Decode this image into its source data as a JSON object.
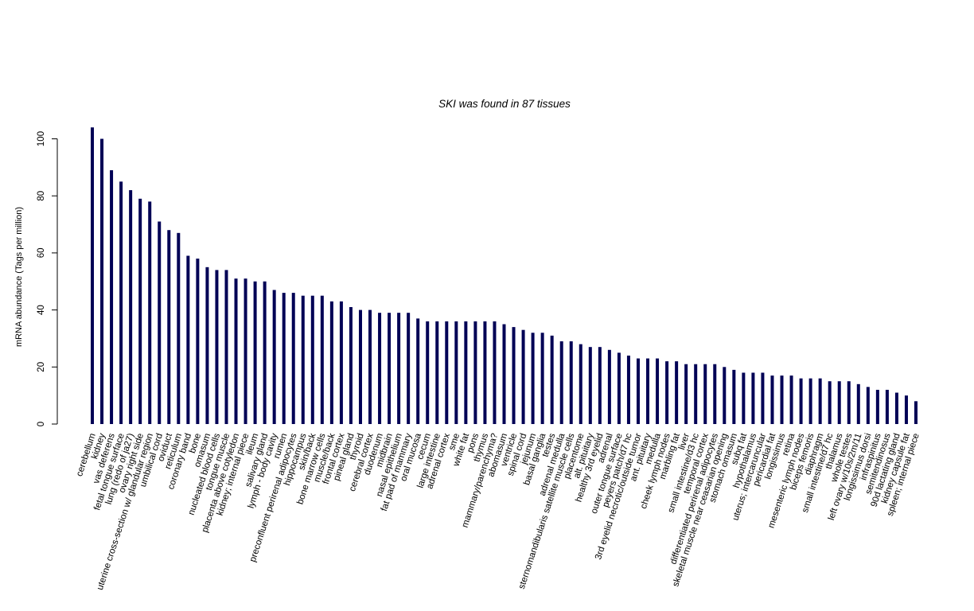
{
  "chart_data": {
    "type": "bar",
    "title": "SKI  was found in  87  tissues",
    "ylabel": "mRNA abundance (Tags per million)",
    "ylim": [
      0,
      104
    ],
    "yticks": [
      0,
      20,
      40,
      60,
      80,
      100
    ],
    "bar_color": "#000055",
    "categories": [
      "cerebellum",
      "kidney",
      "vas deferens",
      "fetal tongue surface",
      "lung (redo of ja27)",
      "ovary right side",
      "uterine cross-section w/ glandular region",
      "umbilical cord",
      "oviduct",
      "reticulum",
      "coronary band",
      "bone",
      "omasum",
      "nucleated blood cells",
      "tongue muscle",
      "placenta above cotyledon",
      "kidney; internal piece",
      "ileum",
      "salivary gland",
      "lymph - body cavity",
      "rumen",
      "preconfluent perirenal adipocytes",
      "hippocampus",
      "skin/back",
      "bone marrow cells",
      "muscle/back",
      "frontal cortex",
      "pineal gland",
      "thyroid",
      "cerebral cortex",
      "duodenum",
      "midbrain",
      "nasal epithelium",
      "fat pad of mammary",
      "oral mucosa",
      "cecum",
      "large intestine",
      "adrenal cortex",
      "sme",
      "white fat",
      "pons",
      "thymus",
      "mammary/parenchyma?",
      "abomasum",
      "ventricle",
      "spinal cord",
      "jejunum",
      "basal ganglia",
      "testes",
      "adrenal medulla",
      "sternomandibularis satellite muscle cells",
      "placentome",
      "alt. pituitary",
      "healthy 3rd eyelid",
      "adrenal",
      "outer tongue surface",
      "peyers patch/d7 hc",
      "3rd eyelid necrotic/outside tumor",
      "ant. pituitary",
      "medulla",
      "cheek lymph nodes",
      "marbling fat",
      "liver",
      "small intestine/d3 hc",
      "temporal cortex",
      "differentiated perirenal adipocytes",
      "skeletal muscle near ceasarian opening",
      "stomach omasum",
      "subq fat",
      "hypothalamus",
      "uterus; intercaruncular",
      "pericardial fat",
      "longissimus",
      "retina",
      "mesenteric lymph nodes",
      "biceps femoris",
      "diaphragm",
      "small intestine/d7 hc",
      "thalamus",
      "whole testes",
      "left ovary w/10s/2m/11",
      "longissimus dorsi",
      "infraspinitus",
      "semitendinosus",
      "90d lactating gland",
      "kidney capsule fat",
      "spleen; internal piece"
    ],
    "values": [
      104,
      100,
      89,
      85,
      82,
      79,
      78,
      71,
      68,
      67,
      59,
      58,
      55,
      54,
      54,
      51,
      51,
      50,
      50,
      47,
      46,
      46,
      45,
      45,
      45,
      43,
      43,
      41,
      40,
      40,
      39,
      39,
      39,
      39,
      37,
      36,
      36,
      36,
      36,
      36,
      36,
      36,
      36,
      35,
      34,
      33,
      32,
      32,
      31,
      29,
      29,
      28,
      27,
      27,
      26,
      25,
      24,
      23,
      23,
      23,
      22,
      22,
      21,
      21,
      21,
      21,
      20,
      19,
      18,
      18,
      18,
      17,
      17,
      17,
      16,
      16,
      16,
      15,
      15,
      15,
      14,
      13,
      12,
      12,
      11,
      10,
      8
    ]
  }
}
